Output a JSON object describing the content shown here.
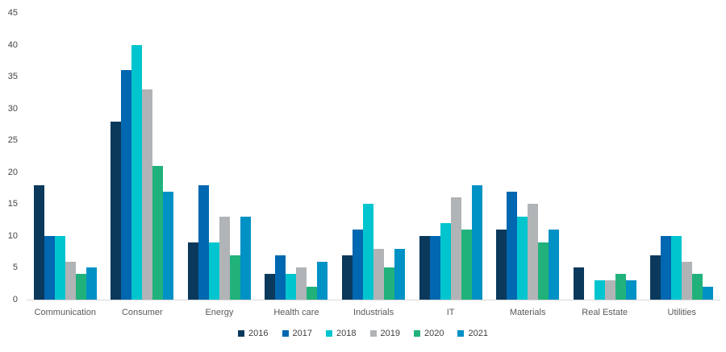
{
  "chart_data": {
    "type": "bar",
    "title": "",
    "xlabel": "",
    "ylabel": "",
    "categories": [
      "Communication",
      "Consumer",
      "Energy",
      "Health care",
      "Industrials",
      "IT",
      "Materials",
      "Real Estate",
      "Utilities"
    ],
    "series": [
      {
        "name": "2016",
        "color": "#0b395c",
        "values": [
          18,
          28,
          9,
          4,
          7,
          10,
          11,
          5,
          7
        ]
      },
      {
        "name": "2017",
        "color": "#0067b1",
        "values": [
          10,
          36,
          18,
          7,
          11,
          10,
          17,
          0,
          10
        ]
      },
      {
        "name": "2018",
        "color": "#00c5cf",
        "values": [
          10,
          40,
          9,
          4,
          15,
          12,
          13,
          3,
          10
        ]
      },
      {
        "name": "2019",
        "color": "#b1b4b6",
        "values": [
          6,
          33,
          13,
          5,
          8,
          16,
          15,
          3,
          6
        ]
      },
      {
        "name": "2020",
        "color": "#21b27c",
        "values": [
          4,
          21,
          7,
          2,
          5,
          11,
          9,
          4,
          4
        ]
      },
      {
        "name": "2021",
        "color": "#0091c5",
        "values": [
          5,
          17,
          13,
          6,
          8,
          18,
          11,
          3,
          2
        ]
      }
    ],
    "ylim": [
      0,
      45
    ],
    "yticks": [
      0,
      5,
      10,
      15,
      20,
      25,
      30,
      35,
      40,
      45
    ],
    "grid": false,
    "legend_position": "bottom",
    "axis_line_color": "#d9d9d9",
    "axis_text_color": "#444444",
    "category_text_color": "#595959"
  }
}
